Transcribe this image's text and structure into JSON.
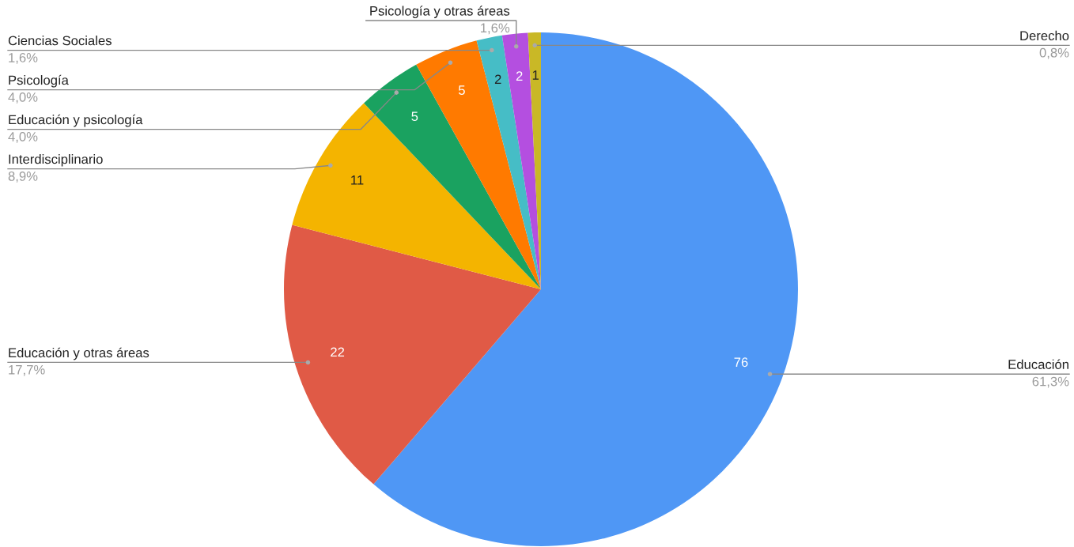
{
  "chart_data": {
    "type": "pie",
    "categories": [
      "Educación",
      "Educación y otras áreas",
      "Interdisciplinario",
      "Educación y psicología",
      "Psicología",
      "Ciencias Sociales",
      "Psicología y otras áreas",
      "Derecho"
    ],
    "values": [
      76,
      22,
      11,
      5,
      5,
      2,
      2,
      1
    ],
    "colors": [
      "#4f97f5",
      "#e05a46",
      "#f4b400",
      "#1aa260",
      "#ff7a00",
      "#46bdc6",
      "#b44fe0",
      "#c9b826"
    ],
    "data_labels": true,
    "annotations": [
      "61,3%",
      "17,7%",
      "8,9%",
      "4,0%",
      "4,0%",
      "1,6%",
      "1,6%",
      "0,8%"
    ]
  }
}
